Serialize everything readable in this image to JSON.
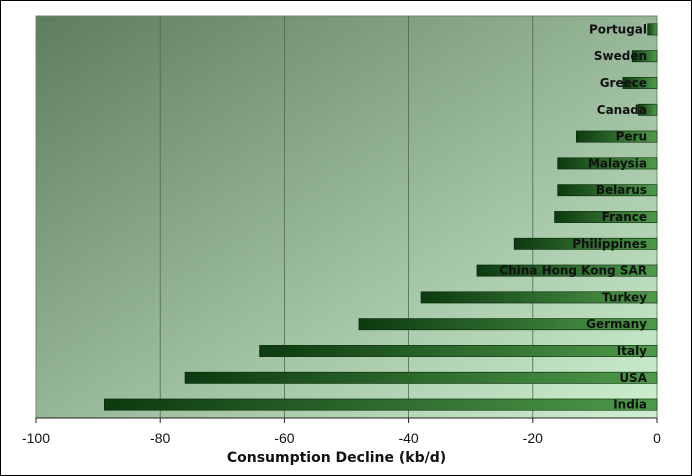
{
  "chart_data": {
    "type": "bar",
    "orientation": "horizontal",
    "title": "",
    "xlabel": "Consumption Decline (kb/d)",
    "ylabel": "",
    "xlim": [
      -100,
      0
    ],
    "xticks": [
      -100,
      -80,
      -60,
      -40,
      -20,
      0
    ],
    "xtick_labels": [
      "-100",
      "-80",
      "-60",
      "-40",
      "-20",
      "0"
    ],
    "grid": "vertical",
    "legend": "none",
    "categories": [
      "Portugal",
      "Sweden",
      "Greece",
      "Canada",
      "Peru",
      "Malaysia",
      "Belarus",
      "France",
      "Philippines",
      "China Hong Kong SAR",
      "Turkey",
      "Germany",
      "Italy",
      "USA",
      "India"
    ],
    "values": [
      -1.5,
      -4,
      -5.5,
      -3,
      -13,
      -16,
      -16,
      -16.5,
      -23,
      -29,
      -38,
      -48,
      -64,
      -76,
      -89
    ],
    "colors": {
      "bar_dark": "#0d3a10",
      "bar_light": "#4e9a4a",
      "plot_bg_dark": "#5e7d5e",
      "plot_bg_light": "#cdf0d0",
      "gridline": "#4d6a4d"
    }
  }
}
